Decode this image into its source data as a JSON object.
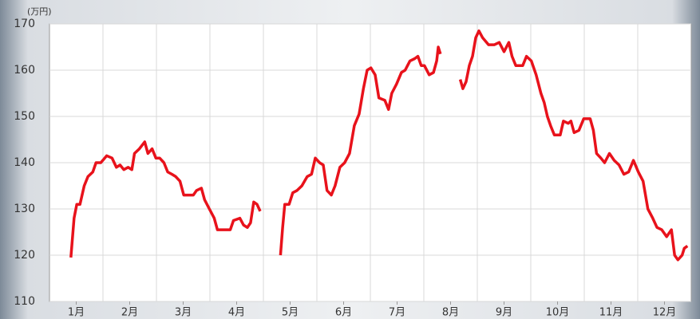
{
  "chart_data": {
    "type": "line",
    "y_unit": "(万円)",
    "x": [
      0.9,
      0.96,
      1.01,
      1.07,
      1.15,
      1.22,
      1.31,
      1.37,
      1.46,
      1.57,
      1.67,
      1.75,
      1.82,
      1.89,
      1.97,
      2.04,
      2.09,
      2.18,
      2.28,
      2.34,
      2.42,
      2.49,
      2.56,
      2.64,
      2.71,
      2.79,
      2.86,
      2.94,
      3.01,
      3.1,
      3.19,
      3.25,
      3.34,
      3.4,
      3.49,
      3.58,
      3.64,
      3.76,
      3.88,
      3.94,
      4.06,
      4.13,
      4.2,
      4.26,
      4.32,
      4.38,
      4.44,
      4.6,
      4.82,
      4.86,
      4.9,
      4.98,
      5.05,
      5.13,
      5.22,
      5.32,
      5.4,
      5.47,
      5.55,
      5.62,
      5.69,
      5.77,
      5.84,
      5.93,
      6.02,
      6.11,
      6.2,
      6.29,
      6.37,
      6.44,
      6.51,
      6.59,
      6.66,
      6.77,
      6.84,
      6.9,
      6.99,
      7.08,
      7.15,
      7.24,
      7.33,
      7.39,
      7.45,
      7.51,
      7.6,
      7.68,
      7.74,
      7.77,
      7.81,
      8.0,
      8.18,
      8.23,
      8.29,
      8.35,
      8.41,
      8.47,
      8.53,
      8.6,
      8.71,
      8.82,
      8.91,
      9.0,
      9.09,
      9.15,
      9.22,
      9.35,
      9.42,
      9.51,
      9.6,
      9.69,
      9.75,
      9.81,
      9.87,
      9.94,
      10.05,
      10.11,
      10.2,
      10.25,
      10.31,
      10.4,
      10.49,
      10.61,
      10.67,
      10.73,
      10.81,
      10.88,
      10.97,
      11.06,
      11.15,
      11.24,
      11.33,
      11.42,
      11.51,
      11.6,
      11.69,
      11.78,
      11.86,
      11.95,
      12.04,
      12.13,
      12.19,
      12.25,
      12.33,
      12.37,
      12.43
    ],
    "series": [
      {
        "color": "#e8121b",
        "values": [
          119.5,
          128,
          131,
          131,
          135,
          137,
          138,
          140,
          140,
          141.5,
          141,
          139,
          139.5,
          138.5,
          139,
          138.5,
          142,
          143,
          144.5,
          142,
          143,
          141,
          141,
          140,
          138,
          137.5,
          137,
          136,
          133,
          133,
          133,
          134,
          134.5,
          132,
          130,
          128,
          125.5,
          125.5,
          125.5,
          127.5,
          128,
          126.5,
          126,
          127,
          131.5,
          131,
          129.5,
          null,
          120,
          126,
          131,
          131,
          133.5,
          134,
          135,
          137,
          137.5,
          141,
          140,
          139.5,
          134,
          133,
          135,
          139,
          140,
          142,
          148,
          150.5,
          156,
          160,
          160.5,
          159,
          154,
          153.5,
          151.5,
          155,
          157,
          159.5,
          160,
          162,
          162.5,
          163,
          161,
          161,
          159,
          159.5,
          162,
          165,
          163.5,
          null,
          158,
          156,
          157.5,
          161,
          163,
          167,
          168.5,
          167,
          165.5,
          165.5,
          166,
          164,
          166,
          163,
          161,
          161,
          163,
          162,
          159,
          155,
          153,
          150,
          148,
          146,
          146,
          149,
          148.5,
          149,
          146.5,
          147,
          149.5,
          149.5,
          147,
          142,
          141,
          140,
          142,
          140.5,
          139.5,
          137.5,
          138,
          140.5,
          138,
          136,
          130,
          128,
          126,
          125.5,
          124,
          125.5,
          120,
          119,
          120,
          121.5,
          122
        ]
      }
    ],
    "xlim": [
      0.5,
      12.5
    ],
    "xticks": [
      {
        "value": 1,
        "label": "1月"
      },
      {
        "value": 2,
        "label": "2月"
      },
      {
        "value": 3,
        "label": "3月"
      },
      {
        "value": 4,
        "label": "4月"
      },
      {
        "value": 5,
        "label": "5月"
      },
      {
        "value": 6,
        "label": "6月"
      },
      {
        "value": 7,
        "label": "7月"
      },
      {
        "value": 8,
        "label": "8月"
      },
      {
        "value": 9,
        "label": "9月"
      },
      {
        "value": 10,
        "label": "10月"
      },
      {
        "value": 11,
        "label": "11月"
      },
      {
        "value": 12,
        "label": "12月"
      }
    ],
    "ylim": [
      110,
      170
    ],
    "yticks": [
      110,
      120,
      130,
      140,
      150,
      160,
      170
    ],
    "grid": true
  }
}
